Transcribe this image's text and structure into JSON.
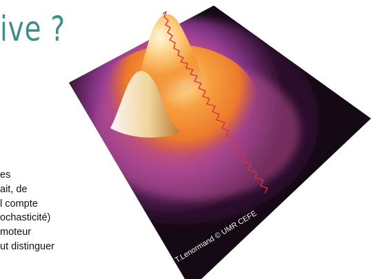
{
  "slide": {
    "title": "ive ?",
    "body_lines": [
      "es",
      "ait, de",
      "l compte",
      "ochasticité)",
      "moteur",
      "ut distinguer"
    ],
    "credit": "T.Lenormand © UMR CEFE"
  },
  "colors": {
    "title": "#3f8f86",
    "text": "#111111",
    "surface_dark": "#140914",
    "surface_purple": "#8a3c9e",
    "surface_orange": "#f39434",
    "surface_peak": "#fff4d8",
    "trajectory": "#d8323e"
  }
}
